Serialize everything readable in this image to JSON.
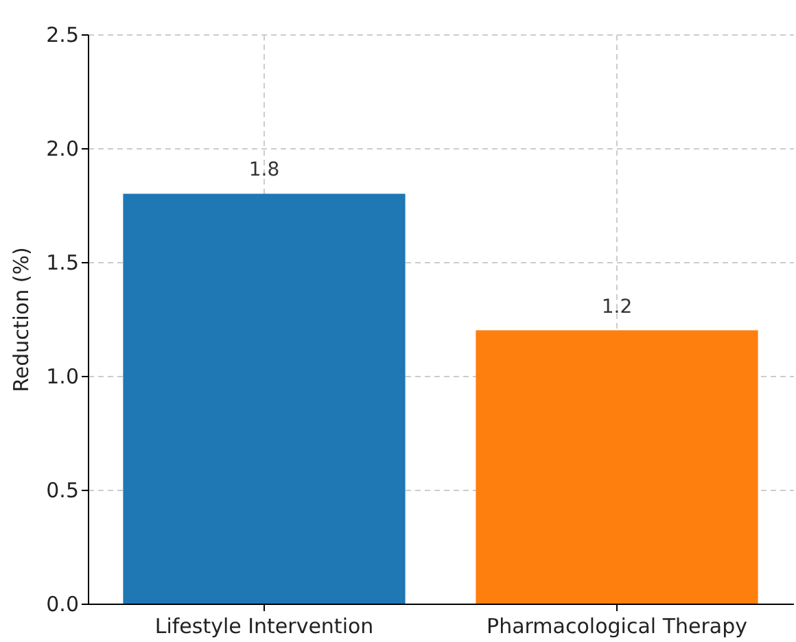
{
  "chart_data": {
    "type": "bar",
    "ylabel": "Reduction (%)",
    "categories": [
      "Lifestyle Intervention",
      "Pharmacological Therapy"
    ],
    "values": [
      1.8,
      1.2
    ],
    "colors": [
      "#1f77b4",
      "#ff7f0e"
    ],
    "ylim": [
      0,
      2.5
    ],
    "yticks": [
      {
        "value": 0,
        "label": "0.0"
      },
      0.5,
      {
        "value": 1,
        "label": "1.0"
      },
      1.5,
      {
        "value": 2,
        "label": "2.0"
      },
      2.5
    ],
    "grid": true,
    "data_labels": true
  }
}
